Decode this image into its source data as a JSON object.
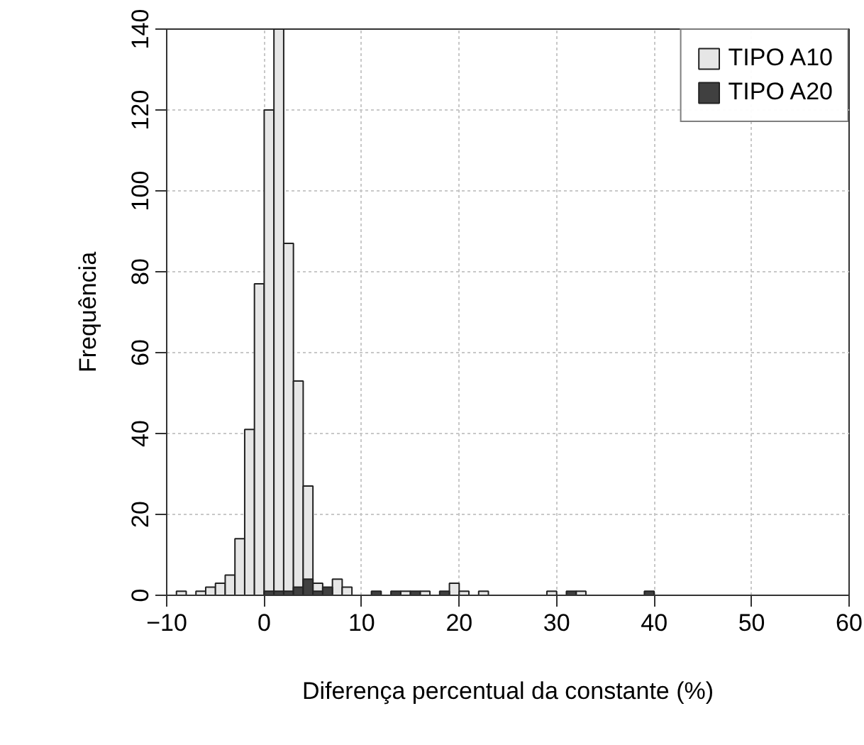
{
  "chart_data": {
    "type": "histogram",
    "xlabel": "Diferença percentual da constante (%)",
    "ylabel": "Frequência",
    "bins": [
      -10,
      -9,
      -8,
      -7,
      -6,
      -5,
      -4,
      -3,
      -2,
      -1,
      0,
      1,
      2,
      3,
      4,
      5,
      6,
      7,
      8,
      9,
      10,
      11,
      12,
      13,
      14,
      15,
      16,
      17,
      18,
      19,
      20,
      21,
      22,
      23,
      24,
      25,
      26,
      27,
      28,
      29,
      30,
      31,
      32,
      33,
      34,
      35,
      36,
      37,
      38,
      39,
      40
    ],
    "series": [
      {
        "name": "TIPO A10",
        "color": "#e6e6e6",
        "values": [
          0,
          1,
          0,
          1,
          2,
          3,
          5,
          14,
          41,
          77,
          120,
          140,
          87,
          53,
          27,
          3,
          0,
          4,
          2,
          0,
          0,
          0,
          0,
          0,
          1,
          0,
          1,
          0,
          0,
          3,
          1,
          0,
          1,
          0,
          0,
          0,
          0,
          0,
          0,
          1,
          0,
          0,
          1,
          0,
          0,
          0,
          0,
          0,
          0,
          0
        ]
      },
      {
        "name": "TIPO A20",
        "color": "#404040",
        "values": [
          0,
          0,
          0,
          0,
          0,
          0,
          0,
          0,
          0,
          0,
          1,
          1,
          1,
          2,
          4,
          1,
          2,
          0,
          0,
          0,
          0,
          1,
          0,
          1,
          0,
          1,
          0,
          0,
          1,
          0,
          0,
          0,
          0,
          0,
          0,
          0,
          0,
          0,
          0,
          0,
          0,
          1,
          0,
          0,
          0,
          0,
          0,
          0,
          0,
          1
        ]
      }
    ],
    "xlim": [
      -10,
      60
    ],
    "xticks": [
      {
        "value": -10,
        "label": "−10"
      },
      0,
      10,
      20,
      30,
      40,
      50,
      60
    ],
    "ylim": [
      0,
      140
    ],
    "yticks": [
      0,
      20,
      40,
      60,
      80,
      100,
      120,
      140
    ],
    "grid": true,
    "legend": "top right"
  }
}
